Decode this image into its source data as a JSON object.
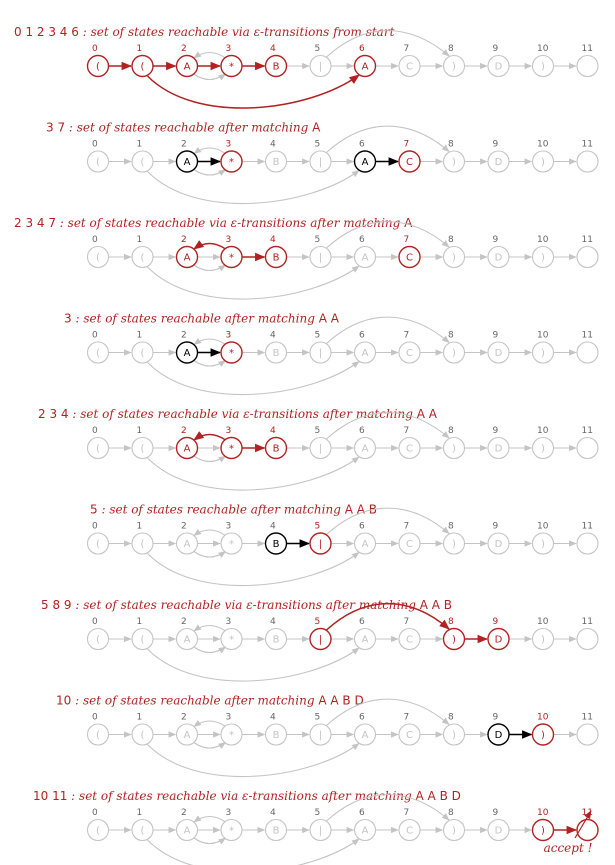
{
  "machine": {
    "states": [
      "0",
      "1",
      "2",
      "3",
      "4",
      "5",
      "6",
      "7",
      "8",
      "9",
      "10",
      "11"
    ],
    "symbols": [
      "(",
      "(",
      "A",
      "*",
      "B",
      "|",
      "A",
      "C",
      ")",
      "D",
      ")",
      ""
    ]
  },
  "colors": {
    "active": "#b22222",
    "inactive": "#c4c4c4",
    "match": "#000000",
    "label": "#b22222"
  },
  "steps": [
    {
      "kind": "eps",
      "state_set": "0 1 2 3 4 6",
      "description": "set of states reachable via ε-transitions from start",
      "matched": "",
      "highlight": [
        0,
        1,
        2,
        3,
        4,
        6
      ],
      "black": [],
      "red_edges": [
        "0-1",
        "1-2",
        "2-3",
        "3-4",
        "1-6"
      ]
    },
    {
      "kind": "match",
      "state_set": "3 7",
      "description": "set of states reachable after matching",
      "matched": "A",
      "highlight": [
        3,
        7
      ],
      "black": [
        2,
        6
      ],
      "red_edges": []
    },
    {
      "kind": "eps",
      "state_set": "2 3 4 7",
      "description": "set of states reachable via ε-transitions after matching",
      "matched": "A",
      "highlight": [
        2,
        3,
        4,
        7
      ],
      "black": [],
      "red_edges": [
        "3-2",
        "3-4"
      ]
    },
    {
      "kind": "match",
      "state_set": "3",
      "description": "set of states reachable after matching",
      "matched": "A  A",
      "highlight": [
        3
      ],
      "black": [
        2
      ],
      "red_edges": []
    },
    {
      "kind": "eps",
      "state_set": "2 3 4",
      "description": "set of states reachable via ε-transitions after matching",
      "matched": "A  A",
      "highlight": [
        2,
        3,
        4
      ],
      "black": [],
      "red_edges": [
        "3-2",
        "3-4"
      ]
    },
    {
      "kind": "match",
      "state_set": "5",
      "description": "set of states reachable after matching",
      "matched": "A  A  B",
      "highlight": [
        5
      ],
      "black": [
        4
      ],
      "red_edges": []
    },
    {
      "kind": "eps",
      "state_set": "5 8 9",
      "description": "set of states reachable via ε-transitions after matching",
      "matched": "A  A  B",
      "highlight": [
        5,
        8,
        9
      ],
      "black": [],
      "red_edges": [
        "5-8",
        "8-9"
      ]
    },
    {
      "kind": "match",
      "state_set": "10",
      "description": "set of states reachable after matching",
      "matched": "A  A  B  D",
      "highlight": [
        10
      ],
      "black": [
        9
      ],
      "red_edges": []
    },
    {
      "kind": "eps",
      "state_set": "10 11",
      "description": "set of states reachable via ε-transitions after matching",
      "matched": "A  A  B  D",
      "highlight": [
        10,
        11
      ],
      "black": [],
      "red_edges": [
        "10-11"
      ]
    }
  ],
  "accept_label": "accept !"
}
